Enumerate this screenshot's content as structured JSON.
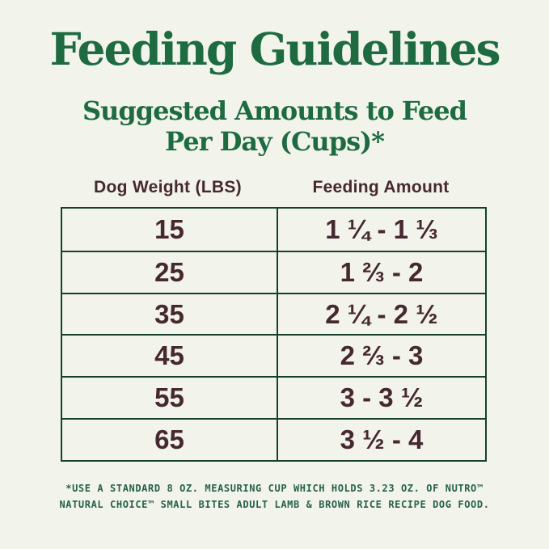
{
  "title": "Feeding Guidelines",
  "subtitle": {
    "line1": "Suggested Amounts to Feed",
    "line2": "Per Day (Cups)*"
  },
  "table": {
    "headers": [
      "Dog Weight (LBS)",
      "Feeding Amount"
    ],
    "rows": [
      {
        "weight": "15",
        "amount": "1 ¼ - 1 ⅓"
      },
      {
        "weight": "25",
        "amount": "1 ⅔ - 2"
      },
      {
        "weight": "35",
        "amount": "2 ¼ - 2 ½"
      },
      {
        "weight": "45",
        "amount": "2 ⅔ - 3"
      },
      {
        "weight": "55",
        "amount": "3 - 3 ½"
      },
      {
        "weight": "65",
        "amount": "3 ½ - 4"
      }
    ]
  },
  "footnote": {
    "line1": "*USE A STANDARD 8 OZ. MEASURING CUP WHICH HOLDS 3.23 OZ. OF NUTRO™",
    "line2": "NATURAL CHOICE™ SMALL BITES ADULT LAMB & BROWN RICE RECIPE DOG FOOD."
  },
  "colors": {
    "background": "#f2f4eb",
    "heading_green": "#1e6b42",
    "footnote_green": "#27604a",
    "text_brown": "#46282f",
    "table_border_green": "#16402d"
  }
}
